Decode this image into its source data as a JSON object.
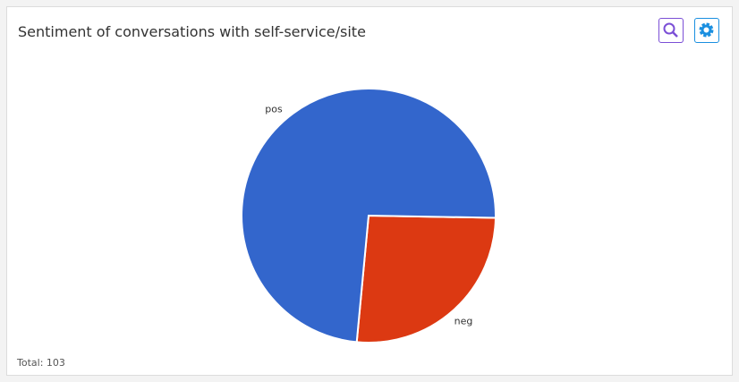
{
  "chart_data": {
    "type": "pie",
    "title": "Sentiment of conversations with self-service/site",
    "categories": [
      "neg",
      "pos"
    ],
    "values": [
      27,
      76
    ],
    "colors": [
      "#dc3912",
      "#3366cc"
    ],
    "note": "Total: 103"
  }
}
